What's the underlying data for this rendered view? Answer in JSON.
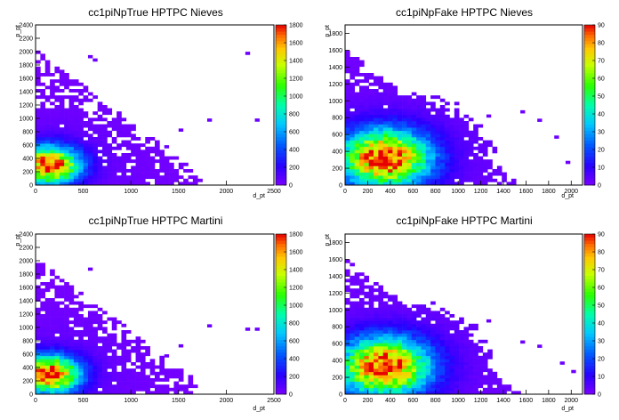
{
  "chart_data": [
    {
      "type": "heatmap",
      "title": "cc1piNpTrue HPTPC Nieves",
      "xlabel": "d_pt",
      "ylabel": "p_pt",
      "xlim": [
        0,
        2500
      ],
      "ylim": [
        0,
        2400
      ],
      "xticks": [
        0,
        500,
        1000,
        1500,
        2000,
        2500
      ],
      "yticks": [
        0,
        200,
        400,
        600,
        800,
        1000,
        1200,
        1400,
        1600,
        1800,
        2000,
        2200,
        2400
      ],
      "zlim": [
        0,
        1800
      ],
      "zticks": [
        0,
        200,
        400,
        600,
        800,
        1000,
        1200,
        1400,
        1600,
        1800
      ],
      "peak": {
        "x": 150,
        "y": 300,
        "z": 1800
      },
      "spread": {
        "x": 260,
        "y": 230
      },
      "outliers": [
        [
          2200,
          1950
        ],
        [
          2300,
          950
        ],
        [
          1800,
          950
        ],
        [
          1500,
          800
        ],
        [
          1350,
          550
        ],
        [
          550,
          1900
        ],
        [
          600,
          1850
        ]
      ]
    },
    {
      "type": "heatmap",
      "title": "cc1piNpFake HPTPC Nieves",
      "xlabel": "d_pt",
      "ylabel": "p_pt",
      "xlim": [
        0,
        2100
      ],
      "ylim": [
        0,
        1900
      ],
      "xticks": [
        0,
        200,
        400,
        600,
        800,
        1000,
        1200,
        1400,
        1600,
        1800,
        2000
      ],
      "yticks": [
        0,
        200,
        400,
        600,
        800,
        1000,
        1200,
        1400,
        1600,
        1800
      ],
      "zlim": [
        0,
        90
      ],
      "zticks": [
        0,
        10,
        20,
        30,
        40,
        50,
        60,
        70,
        80,
        90
      ],
      "peak": {
        "x": 350,
        "y": 320,
        "z": 90
      },
      "spread": {
        "x": 330,
        "y": 280
      },
      "outliers": [
        [
          1850,
          550
        ],
        [
          1950,
          250
        ],
        [
          1700,
          750
        ],
        [
          1250,
          800
        ],
        [
          1550,
          850
        ]
      ]
    },
    {
      "type": "heatmap",
      "title": "cc1piNpTrue HPTPC Martini",
      "xlabel": "d_pt",
      "ylabel": "p_pt",
      "xlim": [
        0,
        2500
      ],
      "ylim": [
        0,
        2400
      ],
      "xticks": [
        0,
        500,
        1000,
        1500,
        2000,
        2500
      ],
      "yticks": [
        0,
        200,
        400,
        600,
        800,
        1000,
        1200,
        1400,
        1600,
        1800,
        2000,
        2200,
        2400
      ],
      "zlim": [
        0,
        1800
      ],
      "zticks": [
        0,
        200,
        400,
        600,
        800,
        1000,
        1200,
        1400,
        1600,
        1800
      ],
      "peak": {
        "x": 150,
        "y": 300,
        "z": 1800
      },
      "spread": {
        "x": 260,
        "y": 230
      },
      "outliers": [
        [
          2200,
          950
        ],
        [
          2300,
          950
        ],
        [
          1800,
          1000
        ],
        [
          1500,
          700
        ],
        [
          1350,
          550
        ],
        [
          550,
          1850
        ]
      ]
    },
    {
      "type": "heatmap",
      "title": "cc1piNpFake HPTPC Martini",
      "xlabel": "d_pt",
      "ylabel": "p_pt",
      "xlim": [
        0,
        2100
      ],
      "ylim": [
        0,
        1900
      ],
      "xticks": [
        0,
        200,
        400,
        600,
        800,
        1000,
        1200,
        1400,
        1600,
        1800,
        2000
      ],
      "yticks": [
        0,
        200,
        400,
        600,
        800,
        1000,
        1200,
        1400,
        1600,
        1800
      ],
      "zlim": [
        0,
        90
      ],
      "zticks": [
        0,
        10,
        20,
        30,
        40,
        50,
        60,
        70,
        80,
        90
      ],
      "peak": {
        "x": 350,
        "y": 330,
        "z": 90
      },
      "spread": {
        "x": 330,
        "y": 280
      },
      "outliers": [
        [
          1900,
          350
        ],
        [
          2000,
          250
        ],
        [
          1700,
          550
        ],
        [
          1250,
          850
        ],
        [
          1550,
          600
        ]
      ]
    }
  ]
}
